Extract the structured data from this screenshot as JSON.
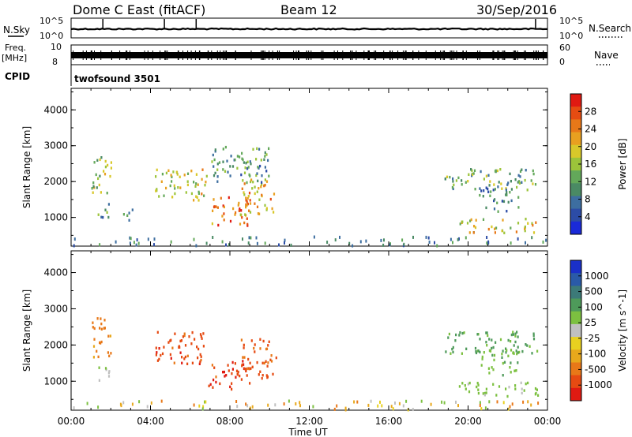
{
  "header": {
    "title": "Dome C East (fitACF)",
    "beam": "Beam 12",
    "date": "30/Sep/2016"
  },
  "strips": {
    "nsky_label": "N.Sky",
    "nsky_tick_top": "10^5",
    "nsky_tick_bottom": "10^0",
    "nsearch_label": "N.Search",
    "nsearch_tick_top": "10^5",
    "nsearch_tick_bottom": "10^0",
    "freq_label_line1": "Freq.",
    "freq_label_line2": "[MHz]",
    "freq_tick_top": "10",
    "freq_tick_bottom": "8",
    "nave_label": "Nave",
    "nave_tick_top": "60",
    "nave_tick_bottom": "0",
    "cpid_label": "CPID",
    "cpid_text": "twofsound 3501"
  },
  "chart_data": [
    {
      "type": "heatmap",
      "panel": "power",
      "ylabel": "Slant Range [km]",
      "ylim": [
        200,
        4600
      ],
      "yticks": [
        "1000",
        "2000",
        "3000",
        "4000"
      ],
      "xlim": [
        "00:00",
        "24:00"
      ],
      "colorbar_label": "Power [dB]",
      "colorbar_ticks": [
        "4",
        "8",
        "12",
        "16",
        "20",
        "24",
        "28"
      ],
      "colorbar_colors": [
        "#1a2ad8",
        "#2c4ca6",
        "#3d6ea0",
        "#4a8a64",
        "#63a85a",
        "#9cc43a",
        "#d8c82a",
        "#e8a020",
        "#e87818",
        "#e64c12",
        "#e01a12"
      ],
      "echo_regions": [
        {
          "t0": 1.0,
          "t1": 2.0,
          "r0": 1700,
          "r1": 2800,
          "v": 16
        },
        {
          "t0": 1.3,
          "t1": 1.9,
          "r0": 1000,
          "r1": 1500,
          "v": 10
        },
        {
          "t0": 2.6,
          "t1": 3.2,
          "r0": 900,
          "r1": 1300,
          "v": 8
        },
        {
          "t0": 4.2,
          "t1": 6.8,
          "r0": 1500,
          "r1": 2400,
          "v": 18
        },
        {
          "t0": 6.9,
          "t1": 9.0,
          "r0": 800,
          "r1": 1600,
          "v": 24
        },
        {
          "t0": 8.5,
          "t1": 10.3,
          "r0": 1100,
          "r1": 2200,
          "v": 21
        },
        {
          "t0": 7.0,
          "t1": 10.0,
          "r0": 2000,
          "r1": 3000,
          "v": 11
        },
        {
          "t0": 18.8,
          "t1": 23.5,
          "r0": 1800,
          "r1": 2400,
          "v": 13
        },
        {
          "t0": 19.5,
          "t1": 23.5,
          "r0": 600,
          "r1": 1000,
          "v": 19
        },
        {
          "t0": 20.5,
          "t1": 22.5,
          "r0": 1200,
          "r1": 1900,
          "v": 9
        }
      ]
    },
    {
      "type": "heatmap",
      "panel": "velocity",
      "ylabel": "Slant Range [km]",
      "ylim": [
        200,
        4600
      ],
      "yticks": [
        "1000",
        "2000",
        "3000",
        "4000"
      ],
      "xlabel": "Time UT",
      "xlim": [
        "00:00",
        "24:00"
      ],
      "xticks": [
        "00:00",
        "04:00",
        "08:00",
        "12:00",
        "16:00",
        "20:00",
        "00:00"
      ],
      "colorbar_label": "Velocity [m s^-1]",
      "colorbar_ticks": [
        "1000",
        "500",
        "100",
        "25",
        "-25",
        "-100",
        "-500",
        "-1000"
      ],
      "colorbar_colors": [
        "#1a30c8",
        "#2a5aa8",
        "#3c7a78",
        "#4e9a5a",
        "#7cc040",
        "#c0c0c0",
        "#e8d020",
        "#e8a81c",
        "#e87818",
        "#e64a12",
        "#e01a12"
      ],
      "echo_regions": [
        {
          "t0": 1.0,
          "t1": 2.0,
          "r0": 1700,
          "r1": 2800,
          "v": -150
        },
        {
          "t0": 1.3,
          "t1": 1.9,
          "r0": 1000,
          "r1": 1500,
          "v": 120
        },
        {
          "t0": 4.2,
          "t1": 6.8,
          "r0": 1500,
          "r1": 2400,
          "v": -400
        },
        {
          "t0": 6.9,
          "t1": 9.0,
          "r0": 800,
          "r1": 1600,
          "v": -450
        },
        {
          "t0": 8.5,
          "t1": 10.3,
          "r0": 1100,
          "r1": 2200,
          "v": -350
        },
        {
          "t0": 18.8,
          "t1": 23.5,
          "r0": 1800,
          "r1": 2400,
          "v": 300
        },
        {
          "t0": 19.5,
          "t1": 23.5,
          "r0": 600,
          "r1": 1000,
          "v": 150
        },
        {
          "t0": 20.5,
          "t1": 22.5,
          "r0": 1200,
          "r1": 1900,
          "v": 200
        }
      ]
    }
  ]
}
